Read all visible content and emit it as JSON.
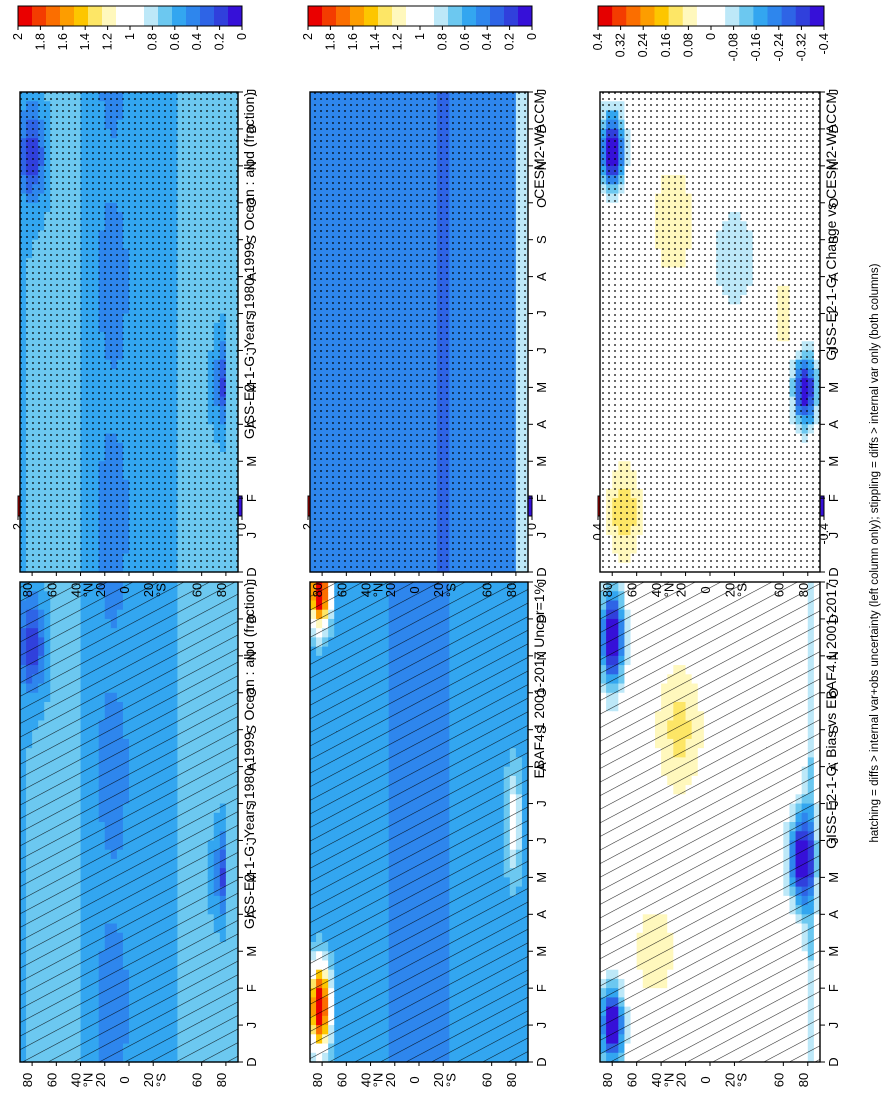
{
  "footnote": "hatching = diffs > internal var+obs uncertainty (left column only); stippling = diffs > internal var only (both columns)",
  "months": [
    "D",
    "J",
    "F",
    "M",
    "A",
    "M",
    "J",
    "J",
    "A",
    "S",
    "O",
    "N",
    "D",
    "J"
  ],
  "lat_labels": [
    "80",
    "60",
    "40",
    "°N",
    "20",
    "0",
    "20",
    "°S",
    "60",
    "80"
  ],
  "colors": {
    "abs_scale": [
      "#ea0000",
      "#f43c00",
      "#fb6e00",
      "#fd9d00",
      "#fdc600",
      "#fde666",
      "#fff8bd",
      "#ffffff",
      "#ffffff",
      "#bde8f8",
      "#6cc8f0",
      "#33a6f0",
      "#2e86ed",
      "#2e64e6",
      "#3040dc",
      "#3610d8"
    ],
    "diff_scale": [
      "#e50000",
      "#f43c00",
      "#fb6e00",
      "#fd9d00",
      "#fdc600",
      "#fde666",
      "#fff8bd",
      "#ffffff",
      "#ffffff",
      "#bde8f8",
      "#6cc8f0",
      "#33a6f0",
      "#2e86ed",
      "#2e64e6",
      "#3040dc",
      "#3610d8"
    ]
  },
  "colorbars": {
    "abs_ticks": [
      "2",
      "1.8",
      "1.6",
      "1.4",
      "1.2",
      "1",
      "0.8",
      "0.6",
      "0.4",
      "0.2",
      "0"
    ],
    "diff_ticks": [
      "0.4",
      "0.32",
      "0.24",
      "0.16",
      "0.08",
      "0",
      "-0.08",
      "-0.16",
      "-0.24",
      "-0.32",
      "-0.4"
    ]
  },
  "chart_data": [
    {
      "type": "heatmap",
      "title": "GISS-E2-1-G: Years 1980-1999 : Ocean : albd (fraction)",
      "x": [
        "D",
        "J",
        "F",
        "M",
        "A",
        "M",
        "J",
        "J",
        "A",
        "S",
        "O",
        "N",
        "D",
        "J"
      ],
      "y_range": [
        -90,
        90
      ],
      "value_range": [
        0,
        2
      ],
      "overlay": "hatching",
      "field": "model",
      "colorbar_ticks": [
        "2",
        "1.8",
        "1.6",
        "1.4",
        "1.2",
        "1",
        "0.8",
        "0.6",
        "0.4",
        "0.2",
        "0"
      ]
    },
    {
      "type": "heatmap",
      "title": "GISS-E2-1-G: Years 1980-1999 : Ocean : albd (fraction)",
      "x": [
        "D",
        "J",
        "F",
        "M",
        "A",
        "M",
        "J",
        "J",
        "A",
        "S",
        "O",
        "N",
        "D",
        "J"
      ],
      "y_range": [
        -90,
        90
      ],
      "value_range": [
        0,
        2
      ],
      "overlay": "stippling",
      "field": "model",
      "colorbar_ticks": [
        "2",
        "1.8",
        "1.6",
        "1.4",
        "1.2",
        "1",
        "0.8",
        "0.6",
        "0.4",
        "0.2",
        "0"
      ]
    },
    {
      "type": "heatmap",
      "title": "EBAF4.1 2001-2017 Uncer=1%",
      "x": [
        "D",
        "J",
        "F",
        "M",
        "A",
        "M",
        "J",
        "J",
        "A",
        "S",
        "O",
        "N",
        "D",
        "J"
      ],
      "y_range": [
        -90,
        90
      ],
      "value_range": [
        0,
        2
      ],
      "overlay": "hatching",
      "field": "obs",
      "colorbar_ticks": [
        "2",
        "1.8",
        "1.6",
        "1.4",
        "1.2",
        "1",
        "0.8",
        "0.6",
        "0.4",
        "0.2",
        "0"
      ]
    },
    {
      "type": "heatmap",
      "title": "CESM2-WACCM",
      "x": [
        "D",
        "J",
        "F",
        "M",
        "A",
        "M",
        "J",
        "J",
        "A",
        "S",
        "O",
        "N",
        "D",
        "J"
      ],
      "y_range": [
        -90,
        90
      ],
      "value_range": [
        0,
        2
      ],
      "overlay": "stippling",
      "field": "cesm",
      "colorbar_ticks": [
        "2",
        "1.8",
        "1.6",
        "1.4",
        "1.2",
        "1",
        "0.8",
        "0.6",
        "0.4",
        "0.2",
        "0"
      ]
    },
    {
      "type": "heatmap",
      "title": "GISS-E2-1-G: Bias vs EBAF4.1 2001-2017",
      "x": [
        "D",
        "J",
        "F",
        "M",
        "A",
        "M",
        "J",
        "J",
        "A",
        "S",
        "O",
        "N",
        "D",
        "J"
      ],
      "y_range": [
        -90,
        90
      ],
      "value_range": [
        -0.4,
        0.4
      ],
      "overlay": "hatching",
      "field": "bias",
      "colorbar_ticks": [
        "0.4",
        "0.32",
        "0.24",
        "0.16",
        "0.08",
        "0",
        "-0.08",
        "-0.16",
        "-0.24",
        "-0.32",
        "-0.4"
      ]
    },
    {
      "type": "heatmap",
      "title": "GISS-E2-1-G: Change vs CESM2-WACCM",
      "x": [
        "D",
        "J",
        "F",
        "M",
        "A",
        "M",
        "J",
        "J",
        "A",
        "S",
        "O",
        "N",
        "D",
        "J"
      ],
      "y_range": [
        -90,
        90
      ],
      "value_range": [
        -0.4,
        0.4
      ],
      "overlay": "stippling",
      "field": "change",
      "colorbar_ticks": [
        "0.4",
        "0.32",
        "0.24",
        "0.16",
        "0.08",
        "0",
        "-0.08",
        "-0.16",
        "-0.24",
        "-0.32",
        "-0.4"
      ]
    }
  ]
}
